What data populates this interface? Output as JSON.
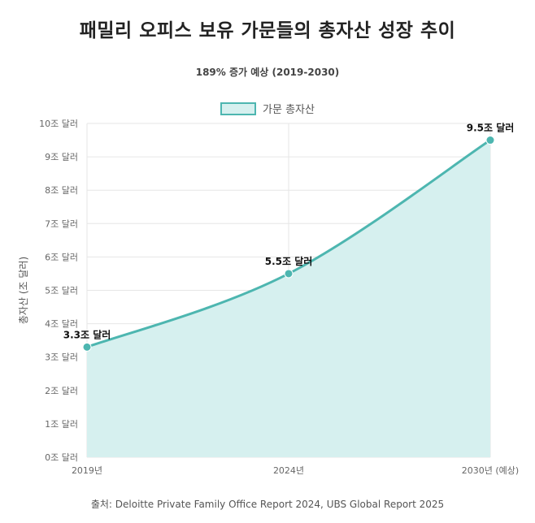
{
  "header": {
    "title": "패밀리 오피스 보유 가문들의 총자산 성장 추이",
    "subtitle": "189% 증가 예상 (2019-2030)"
  },
  "legend": {
    "label": "가문 총자산"
  },
  "source": "출처: Deloitte Private Family Office Report 2024, UBS Global Report 2025",
  "colors": {
    "line": "#4db6b0",
    "fill": "#d6f0ef",
    "grid": "#e6e6e6"
  },
  "chart_data": {
    "type": "area",
    "ylabel": "총자산 (조 달러)",
    "ylim": [
      0,
      10
    ],
    "yticks": [
      "0조 달러",
      "1조 달러",
      "2조 달러",
      "3조 달러",
      "4조 달러",
      "5조 달러",
      "6조 달러",
      "7조 달러",
      "8조 달러",
      "9조 달러",
      "10조 달러"
    ],
    "categories": [
      "2019년",
      "2024년",
      "2030년 (예상)"
    ],
    "series": [
      {
        "name": "가문 총자산",
        "values": [
          3.3,
          5.5,
          9.5
        ],
        "labels": [
          "3.3조 달러",
          "5.5조 달러",
          "9.5조 달러"
        ]
      }
    ],
    "legend_position": "top",
    "grid": true
  }
}
